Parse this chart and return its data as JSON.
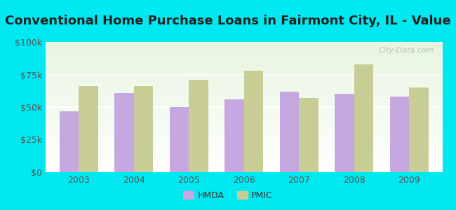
{
  "title": "Conventional Home Purchase Loans in Fairmont City, IL - Value",
  "years": [
    2003,
    2004,
    2005,
    2006,
    2007,
    2008,
    2009
  ],
  "hmda_values": [
    47000,
    61000,
    50000,
    56000,
    62000,
    60000,
    58000
  ],
  "pmic_values": [
    66000,
    66000,
    71000,
    78000,
    57000,
    83000,
    65000
  ],
  "hmda_color": "#c5a8e0",
  "pmic_color": "#c8cd96",
  "background_color": "#00e8f0",
  "ylim": [
    0,
    100000
  ],
  "yticks": [
    0,
    25000,
    50000,
    75000,
    100000
  ],
  "ytick_labels": [
    "$0",
    "$25k",
    "$50k",
    "$75k",
    "$100k"
  ],
  "watermark": "City-Data.com",
  "legend_labels": [
    "HMDA",
    "PMIC"
  ],
  "bar_width": 0.35,
  "title_fontsize": 13,
  "tick_fontsize": 9,
  "legend_fontsize": 9,
  "grid_color": "#ccddcc",
  "tick_color": "#555555"
}
